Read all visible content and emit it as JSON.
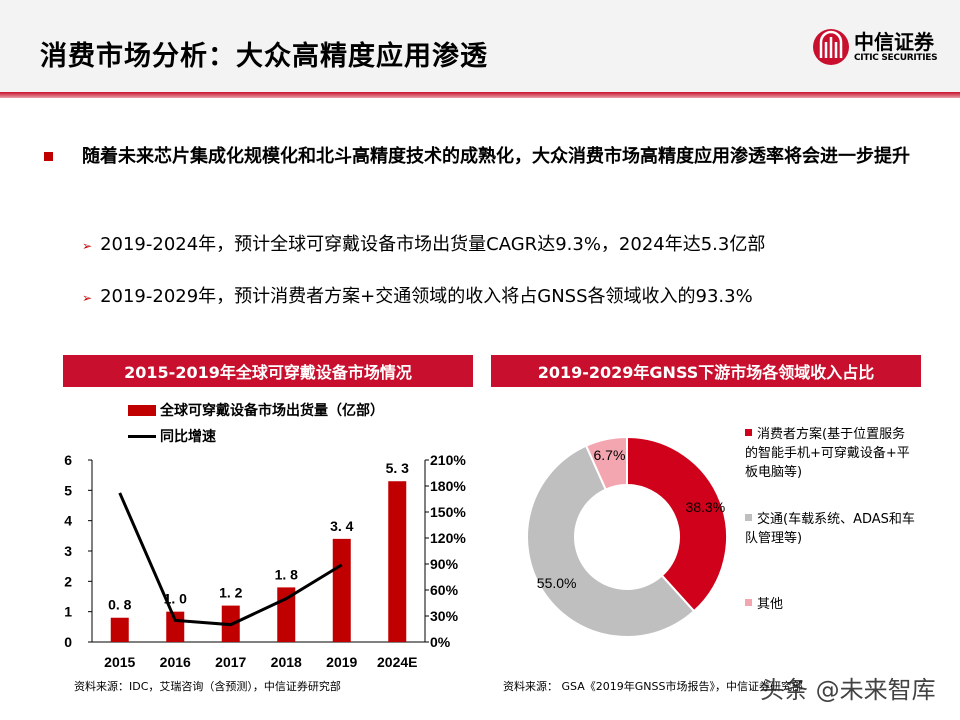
{
  "header": {
    "title": "消费市场分析：大众高精度应用渗透",
    "logo_cn": "中信证券",
    "logo_en": "CITIC SECURITIES"
  },
  "bullets": {
    "main": "随着未来芯片集成化规模化和北斗高精度技术的成熟化，大众消费市场高精度应用渗透率将会进一步提升",
    "sub1": "2019-2024年，预计全球可穿戴设备市场出货量CAGR达9.3%，2024年达5.3亿部",
    "sub2": "2019-2029年，预计消费者方案+交通领域的收入将占GNSS各领域收入的93.3%",
    "arrow": "➢"
  },
  "colors": {
    "accent": "#c8102e",
    "bar": "#c00000",
    "line": "#000000",
    "gray": "#bfbfbf",
    "pink": "#f4a6b0"
  },
  "chart_data": [
    {
      "type": "bar+line",
      "title": "2015-2019年全球可穿戴设备市场情况",
      "categories": [
        "2015",
        "2016",
        "2017",
        "2018",
        "2019",
        "2024E"
      ],
      "series": [
        {
          "name": "全球可穿戴设备市场出货量（亿部）",
          "type": "bar",
          "axis": "left",
          "values": [
            0.8,
            1.0,
            1.2,
            1.8,
            3.4,
            5.3
          ],
          "labels": [
            "0. 8",
            "1. 0",
            "1. 2",
            "1. 8",
            "3. 4",
            "5. 3"
          ]
        },
        {
          "name": "同比增速",
          "type": "line",
          "axis": "right",
          "values": [
            172,
            25,
            20,
            50,
            89,
            null
          ]
        }
      ],
      "ylim": [
        0,
        6
      ],
      "yticks": [
        "0",
        "1",
        "2",
        "3",
        "4",
        "5",
        "6"
      ],
      "y2lim": [
        0,
        210
      ],
      "y2ticks": [
        "0%",
        "30%",
        "60%",
        "90%",
        "120%",
        "150%",
        "180%",
        "210%"
      ],
      "legend": "top",
      "source": "资料来源：IDC，艾瑞咨询（含预测），中信证券研究部"
    },
    {
      "type": "donut",
      "title": "2019-2029年GNSS下游市场各领域收入占比",
      "slices": [
        {
          "name": "消费者方案(基于位置服务的智能手机+可穿戴设备+平板电脑等)",
          "value": 38.3,
          "label": "38.3%",
          "color": "#d0021b"
        },
        {
          "name": "交通(车载系统、ADAS和车队管理等)",
          "value": 55.0,
          "label": "55.0%",
          "color": "#bfbfbf"
        },
        {
          "name": "其他",
          "value": 6.7,
          "label": "6.7%",
          "color": "#f4a6b0"
        }
      ],
      "legend": "right",
      "source": "资料来源： GSA《2019年GNSS市场报告》，中信证券研究部"
    }
  ],
  "watermark": "头条 @未来智库"
}
